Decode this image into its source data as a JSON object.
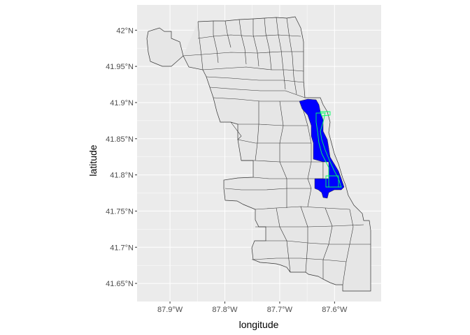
{
  "chart_data": {
    "type": "map",
    "title": "",
    "xlabel": "longitude",
    "ylabel": "latitude",
    "xlim": [
      -87.96,
      -87.515
    ],
    "ylim": [
      41.625,
      42.035
    ],
    "x_ticks": [
      {
        "value": -87.9,
        "label": "87.9°W"
      },
      {
        "value": -87.8,
        "label": "87.8°W"
      },
      {
        "value": -87.7,
        "label": "87.7°W"
      },
      {
        "value": -87.6,
        "label": "87.6°W"
      }
    ],
    "y_ticks": [
      {
        "value": 42.0,
        "label": "42°N"
      },
      {
        "value": 41.95,
        "label": "41.95°N"
      },
      {
        "value": 41.9,
        "label": "41.9°N"
      },
      {
        "value": 41.85,
        "label": "41.85°N"
      },
      {
        "value": 41.8,
        "label": "41.8°N"
      },
      {
        "value": 41.75,
        "label": "41.75°N"
      },
      {
        "value": 41.7,
        "label": "41.7°N"
      },
      {
        "value": 41.65,
        "label": "41.65°N"
      }
    ],
    "grid": true,
    "legend": "none",
    "colors": {
      "panel_background": "#ebebeb",
      "grid_major": "#ffffff",
      "region_fill": "#e6e6e6",
      "region_border": "#333333",
      "highlight_fill": "#0000ff",
      "highlight_outline": "#00ff66"
    },
    "highlighted_area": "blue filled lakefront community areas from about 41.77°N to 41.91°N with green outlined sub-areas"
  }
}
